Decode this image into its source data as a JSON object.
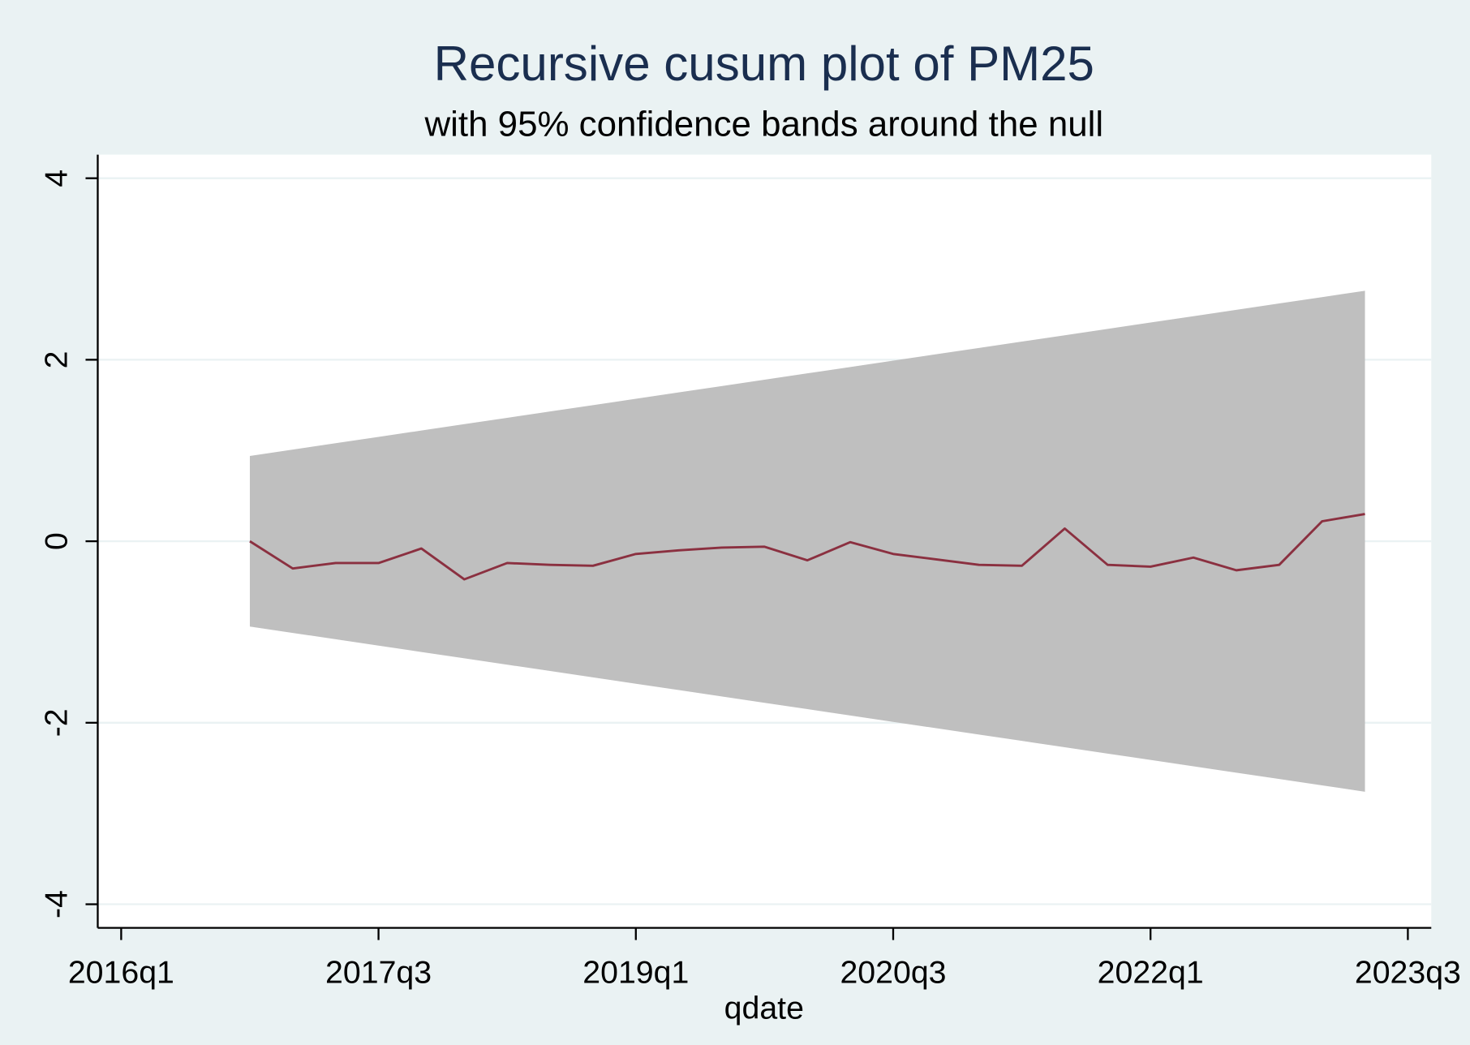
{
  "chart_data": {
    "type": "line",
    "title": "Recursive cusum plot of PM25",
    "subtitle": "with 95% confidence bands around the null",
    "x_label": "qdate",
    "x": [
      "2016q4",
      "2017q1",
      "2017q2",
      "2017q3",
      "2017q4",
      "2018q1",
      "2018q2",
      "2018q3",
      "2018q4",
      "2019q1",
      "2019q2",
      "2019q3",
      "2019q4",
      "2020q1",
      "2020q2",
      "2020q3",
      "2020q4",
      "2021q1",
      "2021q2",
      "2021q3",
      "2021q4",
      "2022q1",
      "2022q2",
      "2022q3",
      "2022q4",
      "2023q1",
      "2023q2"
    ],
    "values": [
      0,
      -0.3,
      -0.24,
      -0.24,
      -0.08,
      -0.42,
      -0.24,
      -0.26,
      -0.27,
      -0.14,
      -0.1,
      -0.07,
      -0.06,
      -0.21,
      -0.01,
      -0.14,
      -0.2,
      -0.26,
      -0.27,
      0.14,
      -0.26,
      -0.28,
      -0.18,
      -0.32,
      -0.26,
      0.22,
      0.3
    ],
    "color": "#8b3040",
    "band": {
      "upper": [
        0.94,
        1.01,
        1.08,
        1.15,
        1.22,
        1.29,
        1.36,
        1.43,
        1.5,
        1.57,
        1.64,
        1.71,
        1.78,
        1.85,
        1.92,
        1.99,
        2.06,
        2.13,
        2.2,
        2.27,
        2.34,
        2.41,
        2.48,
        2.55,
        2.62,
        2.69,
        2.76
      ],
      "lower": [
        -0.94,
        -1.01,
        -1.08,
        -1.15,
        -1.22,
        -1.29,
        -1.36,
        -1.43,
        -1.5,
        -1.57,
        -1.64,
        -1.71,
        -1.78,
        -1.85,
        -1.92,
        -1.99,
        -2.06,
        -2.13,
        -2.2,
        -2.27,
        -2.34,
        -2.41,
        -2.48,
        -2.55,
        -2.62,
        -2.69,
        -2.76
      ],
      "color": "#bfbfbf"
    },
    "xlim": [
      "2016q1",
      "2023q3"
    ],
    "xticks": [
      "2016q1",
      "2017q3",
      "2019q1",
      "2020q3",
      "2022q1",
      "2023q3"
    ],
    "ylim": [
      -4.26,
      4.26
    ],
    "yticks": [
      -4,
      -2,
      0,
      2,
      4
    ],
    "grid": true
  }
}
